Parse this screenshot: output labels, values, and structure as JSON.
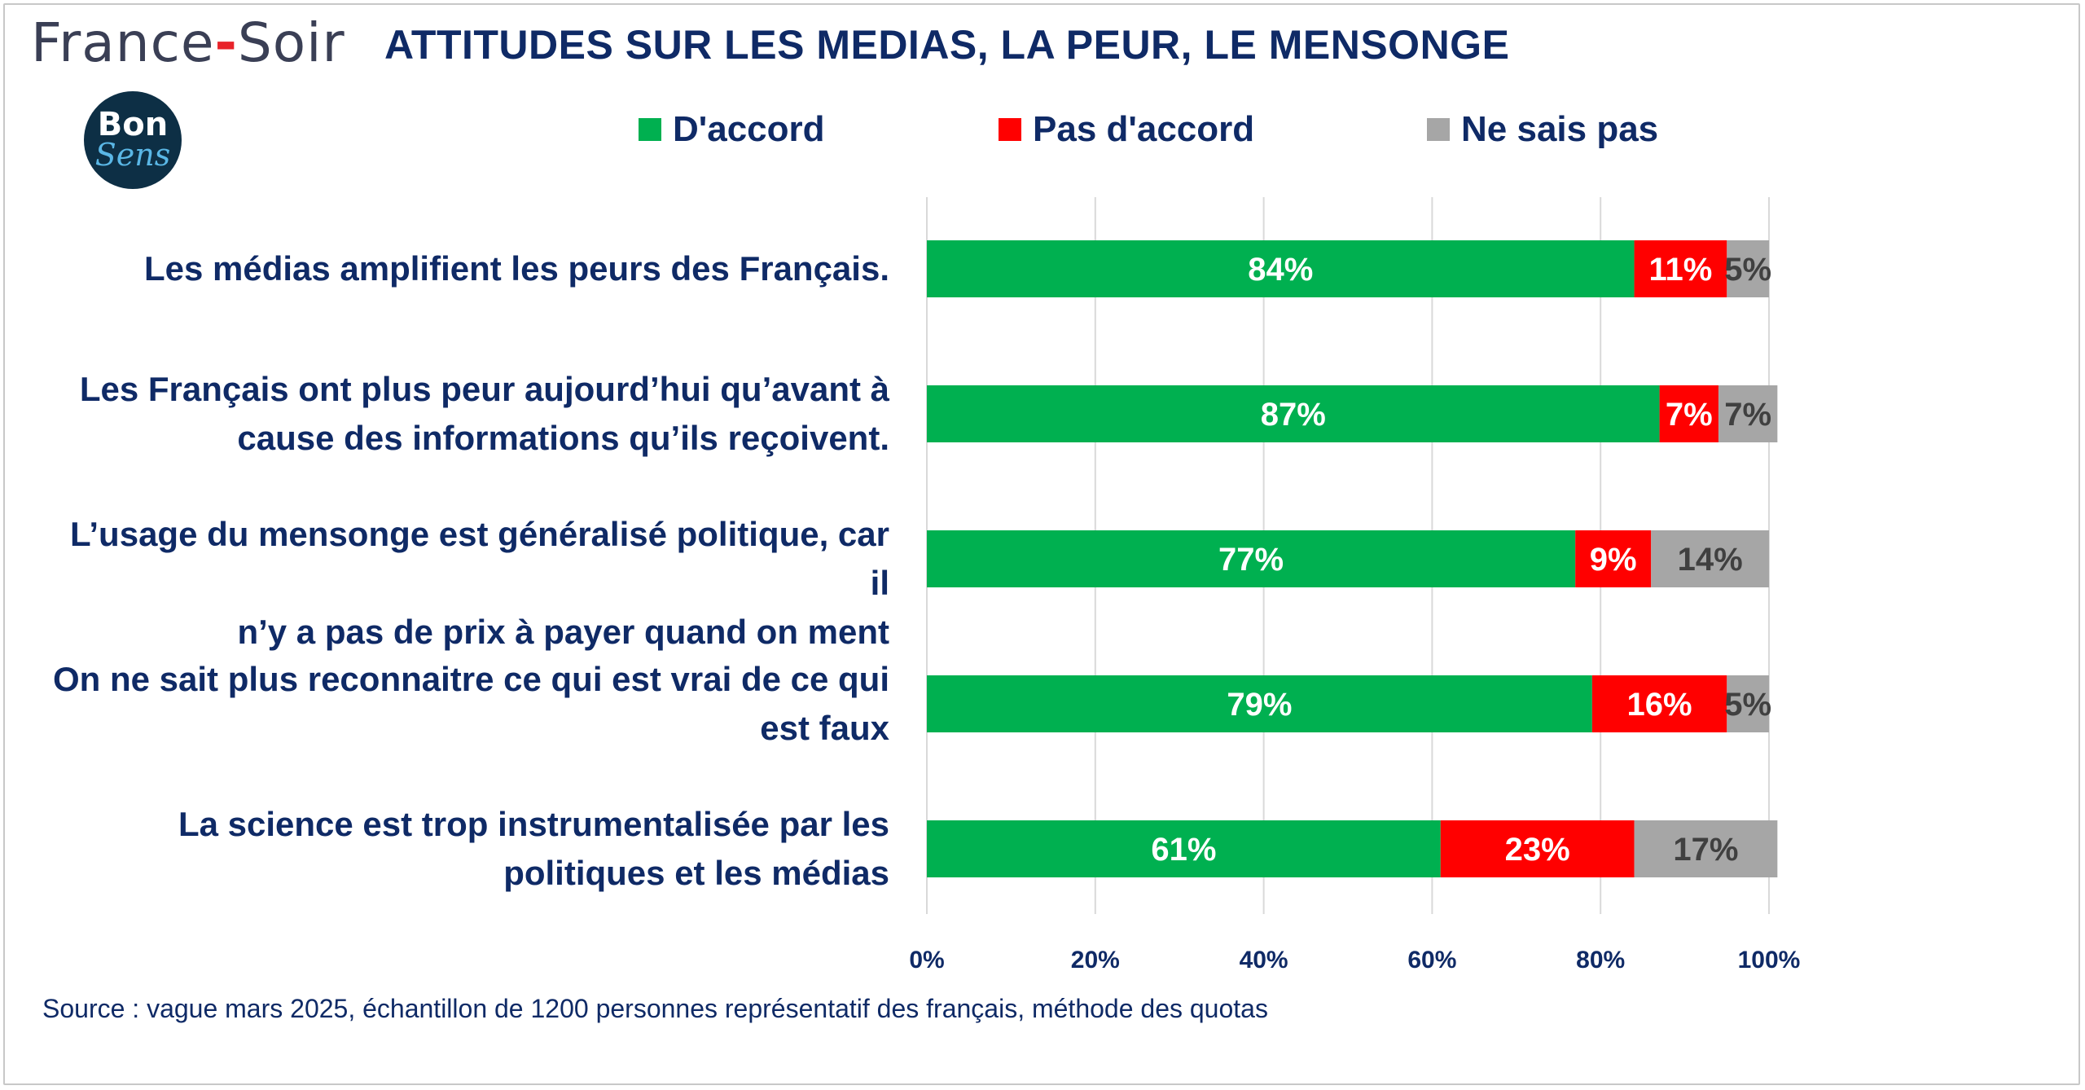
{
  "header": {
    "brand_main": "France",
    "brand_dash": "-",
    "brand_end": "Soir",
    "title": "ATTITUDES SUR LES MEDIAS, LA PEUR, LE MENSONGE",
    "logo_top": "Bon",
    "logo_bottom": "Sens"
  },
  "legend": [
    {
      "label": "D'accord",
      "color": "#00b050"
    },
    {
      "label": "Pas d'accord",
      "color": "#ff0000"
    },
    {
      "label": "Ne sais pas",
      "color": "#a6a6a6"
    }
  ],
  "footer": {
    "source": "Source : vague mars 2025, échantillon de 1200 personnes représentatif des français, méthode des quotas"
  },
  "chart_data": {
    "type": "bar",
    "orientation": "horizontal",
    "stacked": true,
    "title": "ATTITUDES SUR LES MEDIAS, LA PEUR, LE MENSONGE",
    "categories": [
      "Les médias amplifient les peurs des Français.",
      "Les Français ont plus peur aujourd’hui qu’avant à cause des informations qu’ils reçoivent.",
      "L’usage du mensonge est généralisé politique, car il n’y a pas de prix à payer quand on ment",
      "On ne sait plus reconnaitre ce qui est vrai de ce qui est faux",
      "La science est trop instrumentalisée par les politiques et les médias"
    ],
    "category_lines": [
      [
        "Les médias amplifient les peurs des Français."
      ],
      [
        "Les Français ont plus peur aujourd’hui qu’avant à",
        "cause des informations qu’ils reçoivent."
      ],
      [
        "L’usage du mensonge est généralisé politique, car il",
        "n’y a pas de prix à payer quand on ment"
      ],
      [
        "On ne sait plus reconnaitre ce qui est vrai de ce qui",
        "est faux"
      ],
      [
        "La science est trop instrumentalisée par les",
        "politiques et les médias"
      ]
    ],
    "series": [
      {
        "name": "D'accord",
        "color": "#00b050",
        "label_color": "#ffffff",
        "values": [
          84,
          87,
          77,
          79,
          61
        ]
      },
      {
        "name": "Pas d'accord",
        "color": "#ff0000",
        "label_color": "#ffffff",
        "values": [
          11,
          7,
          9,
          16,
          23
        ]
      },
      {
        "name": "Ne sais pas",
        "color": "#a6a6a6",
        "label_color": "#404040",
        "values": [
          5,
          7,
          14,
          5,
          17
        ]
      }
    ],
    "data_labels": [
      [
        "84%",
        "11%",
        "5%"
      ],
      [
        "87%",
        "7%",
        "7%"
      ],
      [
        "77%",
        "9%",
        "14%"
      ],
      [
        "79%",
        "16%",
        "5%"
      ],
      [
        "61%",
        "23%",
        "17%"
      ]
    ],
    "xlim": [
      0,
      100
    ],
    "xticks": [
      0,
      20,
      40,
      60,
      80,
      100
    ],
    "xtick_labels": [
      "0%",
      "20%",
      "40%",
      "60%",
      "80%",
      "100%"
    ],
    "grid": true,
    "legend_position": "top",
    "xlabel": "",
    "ylabel": ""
  }
}
